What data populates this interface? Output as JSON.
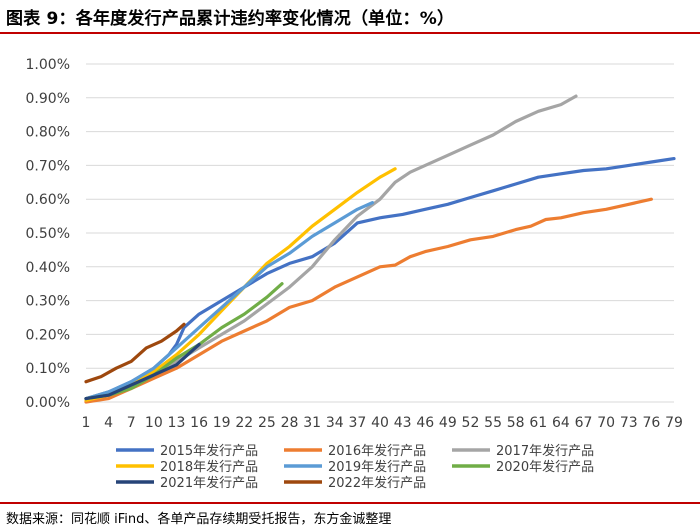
{
  "title": "图表 9：各年度发行产品累计违约率变化情况（单位：%）",
  "source": "数据来源：同花顺 iFind、各单产品存续期受托报告，东方金诚整理",
  "chart_data": {
    "type": "line",
    "title": "图表 9：各年度发行产品累计违约率变化情况（单位：%）",
    "xlabel": "",
    "ylabel": "",
    "xlim": [
      1,
      79
    ],
    "ylim": [
      0,
      1.0
    ],
    "grid": true,
    "legend_position": "bottom",
    "x_ticks": [
      1,
      4,
      7,
      10,
      13,
      16,
      19,
      22,
      25,
      28,
      31,
      34,
      37,
      40,
      43,
      46,
      49,
      52,
      55,
      58,
      61,
      64,
      67,
      70,
      73,
      76,
      79
    ],
    "y_ticks": [
      "0.00%",
      "0.10%",
      "0.20%",
      "0.30%",
      "0.40%",
      "0.50%",
      "0.60%",
      "0.70%",
      "0.80%",
      "0.90%",
      "1.00%"
    ],
    "series": [
      {
        "name": "2015年发行产品",
        "color": "#4472C4",
        "points": [
          [
            1,
            0.01
          ],
          [
            4,
            0.03
          ],
          [
            7,
            0.06
          ],
          [
            10,
            0.1
          ],
          [
            12,
            0.14
          ],
          [
            13,
            0.17
          ],
          [
            14,
            0.22
          ],
          [
            16,
            0.26
          ],
          [
            19,
            0.3
          ],
          [
            22,
            0.34
          ],
          [
            25,
            0.38
          ],
          [
            28,
            0.41
          ],
          [
            31,
            0.43
          ],
          [
            34,
            0.47
          ],
          [
            37,
            0.53
          ],
          [
            40,
            0.545
          ],
          [
            43,
            0.555
          ],
          [
            46,
            0.57
          ],
          [
            49,
            0.585
          ],
          [
            52,
            0.605
          ],
          [
            55,
            0.625
          ],
          [
            58,
            0.645
          ],
          [
            61,
            0.665
          ],
          [
            64,
            0.675
          ],
          [
            67,
            0.685
          ],
          [
            70,
            0.69
          ],
          [
            73,
            0.7
          ],
          [
            76,
            0.71
          ],
          [
            79,
            0.72
          ]
        ]
      },
      {
        "name": "2016年发行产品",
        "color": "#ED7D31",
        "points": [
          [
            1,
            0.0
          ],
          [
            4,
            0.01
          ],
          [
            7,
            0.04
          ],
          [
            10,
            0.07
          ],
          [
            13,
            0.1
          ],
          [
            16,
            0.14
          ],
          [
            19,
            0.18
          ],
          [
            22,
            0.21
          ],
          [
            25,
            0.24
          ],
          [
            28,
            0.28
          ],
          [
            31,
            0.3
          ],
          [
            34,
            0.34
          ],
          [
            37,
            0.37
          ],
          [
            40,
            0.4
          ],
          [
            42,
            0.405
          ],
          [
            44,
            0.43
          ],
          [
            46,
            0.445
          ],
          [
            49,
            0.46
          ],
          [
            52,
            0.48
          ],
          [
            55,
            0.49
          ],
          [
            58,
            0.51
          ],
          [
            60,
            0.52
          ],
          [
            62,
            0.54
          ],
          [
            64,
            0.545
          ],
          [
            67,
            0.56
          ],
          [
            70,
            0.57
          ],
          [
            73,
            0.585
          ],
          [
            76,
            0.6
          ]
        ]
      },
      {
        "name": "2017年发行产品",
        "color": "#A5A5A5",
        "points": [
          [
            1,
            0.01
          ],
          [
            4,
            0.03
          ],
          [
            7,
            0.05
          ],
          [
            10,
            0.08
          ],
          [
            13,
            0.12
          ],
          [
            16,
            0.16
          ],
          [
            19,
            0.2
          ],
          [
            22,
            0.24
          ],
          [
            25,
            0.29
          ],
          [
            28,
            0.34
          ],
          [
            31,
            0.4
          ],
          [
            34,
            0.48
          ],
          [
            37,
            0.55
          ],
          [
            40,
            0.6
          ],
          [
            42,
            0.65
          ],
          [
            44,
            0.68
          ],
          [
            46,
            0.7
          ],
          [
            49,
            0.73
          ],
          [
            52,
            0.76
          ],
          [
            55,
            0.79
          ],
          [
            58,
            0.83
          ],
          [
            61,
            0.86
          ],
          [
            64,
            0.88
          ],
          [
            66,
            0.905
          ]
        ]
      },
      {
        "name": "2018年发行产品",
        "color": "#FFC000",
        "points": [
          [
            1,
            0.005
          ],
          [
            4,
            0.02
          ],
          [
            7,
            0.05
          ],
          [
            10,
            0.09
          ],
          [
            13,
            0.14
          ],
          [
            16,
            0.2
          ],
          [
            19,
            0.27
          ],
          [
            22,
            0.34
          ],
          [
            25,
            0.41
          ],
          [
            28,
            0.46
          ],
          [
            31,
            0.52
          ],
          [
            34,
            0.57
          ],
          [
            37,
            0.62
          ],
          [
            40,
            0.665
          ],
          [
            42,
            0.69
          ]
        ]
      },
      {
        "name": "2019年发行产品",
        "color": "#5B9BD5",
        "points": [
          [
            1,
            0.01
          ],
          [
            4,
            0.03
          ],
          [
            7,
            0.06
          ],
          [
            10,
            0.1
          ],
          [
            13,
            0.16
          ],
          [
            16,
            0.22
          ],
          [
            19,
            0.28
          ],
          [
            22,
            0.34
          ],
          [
            25,
            0.4
          ],
          [
            28,
            0.44
          ],
          [
            31,
            0.49
          ],
          [
            34,
            0.53
          ],
          [
            37,
            0.57
          ],
          [
            39,
            0.59
          ]
        ]
      },
      {
        "name": "2020年发行产品",
        "color": "#70AD47",
        "points": [
          [
            1,
            0.01
          ],
          [
            4,
            0.02
          ],
          [
            7,
            0.04
          ],
          [
            10,
            0.08
          ],
          [
            13,
            0.13
          ],
          [
            16,
            0.17
          ],
          [
            19,
            0.22
          ],
          [
            22,
            0.26
          ],
          [
            25,
            0.31
          ],
          [
            27,
            0.35
          ]
        ]
      },
      {
        "name": "2021年发行产品",
        "color": "#264478",
        "points": [
          [
            1,
            0.01
          ],
          [
            4,
            0.02
          ],
          [
            7,
            0.05
          ],
          [
            10,
            0.08
          ],
          [
            13,
            0.11
          ],
          [
            15,
            0.15
          ],
          [
            16,
            0.17
          ]
        ]
      },
      {
        "name": "2022年发行产品",
        "color": "#9E480E",
        "points": [
          [
            1,
            0.06
          ],
          [
            3,
            0.075
          ],
          [
            5,
            0.1
          ],
          [
            7,
            0.12
          ],
          [
            9,
            0.16
          ],
          [
            11,
            0.18
          ],
          [
            13,
            0.21
          ],
          [
            14,
            0.23
          ]
        ]
      }
    ]
  }
}
